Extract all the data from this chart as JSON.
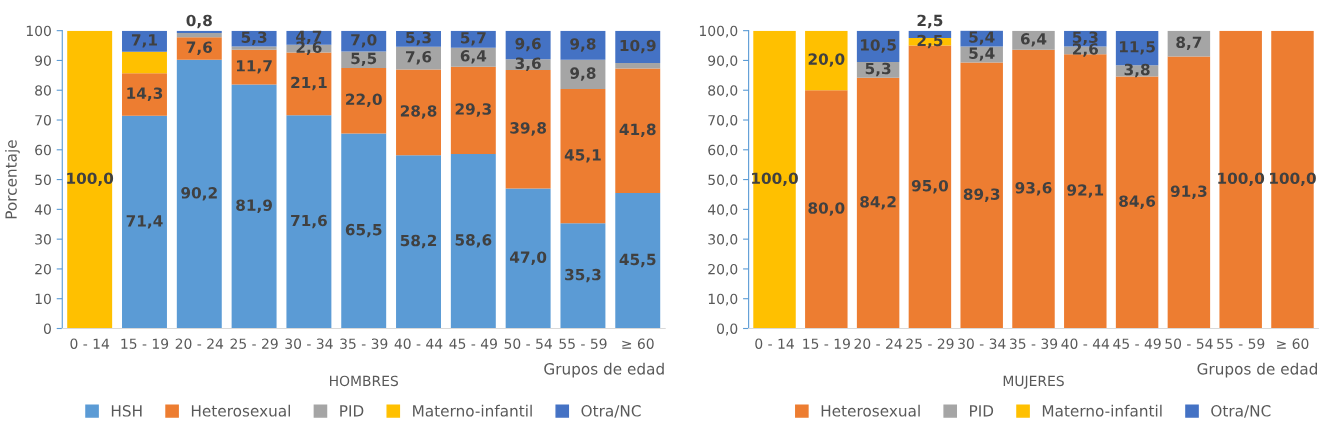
{
  "chart_data": [
    {
      "type": "bar",
      "stacked": true,
      "title": "HOMBRES",
      "xlabel": "Grupos de edad",
      "ylabel": "Porcentaje",
      "legend": "bottom",
      "grid": false,
      "categories": [
        "0 - 14",
        "15 - 19",
        "20 - 24",
        "25 - 29",
        "30 - 34",
        "35 - 39",
        "40 - 44",
        "45 - 49",
        "50 - 54",
        "55 - 59",
        "≥ 60"
      ],
      "ylim": [
        0,
        100
      ],
      "yticks": [
        0,
        10,
        20,
        30,
        40,
        50,
        60,
        70,
        80,
        90,
        100
      ],
      "series": [
        {
          "name": "HSH",
          "color": "#5b9bd5",
          "values": [
            null,
            71.4,
            90.2,
            81.9,
            71.6,
            65.5,
            58.2,
            58.6,
            47.0,
            35.3,
            45.5
          ],
          "value_labels": [
            null,
            "71,4",
            "90,2",
            "81,9",
            "71,6",
            "65,5",
            "58,2",
            "58,6",
            "47,0",
            "35,3",
            "45,5"
          ]
        },
        {
          "name": "Heterosexual",
          "color": "#ed7d31",
          "values": [
            null,
            14.3,
            7.6,
            11.7,
            21.1,
            22.0,
            28.8,
            29.3,
            39.8,
            45.1,
            41.8
          ],
          "value_labels": [
            null,
            "14,3",
            "7,6",
            "11,7",
            "21,1",
            "22,0",
            "28,8",
            "29,3",
            "39,8",
            "45,1",
            "41,8"
          ]
        },
        {
          "name": "PID",
          "color": "#a5a5a5",
          "values": [
            null,
            null,
            1.4,
            1.1,
            2.6,
            5.5,
            7.6,
            6.4,
            3.6,
            9.8,
            1.8
          ],
          "value_labels": [
            null,
            null,
            null,
            null,
            "2,6",
            "5,5",
            "7,6",
            "6,4",
            "3,6",
            "9,8",
            null
          ]
        },
        {
          "name": "Materno-infantil",
          "color": "#ffc000",
          "values": [
            100.0,
            7.2,
            null,
            null,
            null,
            null,
            null,
            null,
            null,
            null,
            null
          ],
          "value_labels": [
            "100,0",
            null,
            null,
            null,
            null,
            null,
            null,
            null,
            null,
            null,
            null
          ]
        },
        {
          "name": "Otra/NC",
          "color": "#4472c4",
          "values": [
            null,
            7.1,
            0.8,
            5.3,
            4.7,
            7.0,
            5.3,
            5.7,
            9.6,
            9.8,
            10.9
          ],
          "value_labels": [
            null,
            "7,1",
            "0,8",
            "5,3",
            "4,7",
            "7,0",
            "5,3",
            "5,7",
            "9,6",
            "9,8",
            "10,9"
          ]
        }
      ]
    },
    {
      "type": "bar",
      "stacked": true,
      "title": "MUJERES",
      "xlabel": "Grupos de edad",
      "legend": "bottom",
      "grid": false,
      "categories": [
        "0 - 14",
        "15 - 19",
        "20 - 24",
        "25 - 29",
        "30 - 34",
        "35 - 39",
        "40 - 44",
        "45 - 49",
        "50 - 54",
        "55 - 59",
        "≥ 60"
      ],
      "ylim": [
        0,
        100
      ],
      "yticks": [
        {
          "value": 0,
          "label": "0,0"
        },
        {
          "value": 10,
          "label": "10,0"
        },
        {
          "value": 20,
          "label": "20,0"
        },
        {
          "value": 30,
          "label": "30,0"
        },
        {
          "value": 40,
          "label": "40,0"
        },
        {
          "value": 50,
          "label": "50,0"
        },
        {
          "value": 60,
          "label": "60,0"
        },
        {
          "value": 70,
          "label": "70,0"
        },
        {
          "value": 80,
          "label": "80,0"
        },
        {
          "value": 90,
          "label": "90,0"
        },
        {
          "value": 100,
          "label": "100,0"
        }
      ],
      "series": [
        {
          "name": "Heterosexual",
          "color": "#ed7d31",
          "values": [
            null,
            80.0,
            84.2,
            95.0,
            89.3,
            93.6,
            92.1,
            84.6,
            91.3,
            100.0,
            100.0
          ],
          "value_labels": [
            null,
            "80,0",
            "84,2",
            "95,0",
            "89,3",
            "93,6",
            "92,1",
            "84,6",
            "91,3",
            "100,0",
            "100,0"
          ]
        },
        {
          "name": "PID",
          "color": "#a5a5a5",
          "values": [
            null,
            null,
            5.3,
            null,
            5.4,
            6.4,
            2.6,
            3.8,
            8.7,
            null,
            null
          ],
          "value_labels": [
            null,
            null,
            "5,3",
            null,
            "5,4",
            "6,4",
            "2,6",
            "3,8",
            "8,7",
            null,
            null
          ]
        },
        {
          "name": "Materno-infantil",
          "color": "#ffc000",
          "values": [
            100.0,
            20.0,
            null,
            2.5,
            null,
            null,
            null,
            null,
            null,
            null,
            null
          ],
          "value_labels": [
            "100,0",
            "20,0",
            null,
            "2,5",
            null,
            null,
            null,
            null,
            null,
            null,
            null
          ]
        },
        {
          "name": "Otra/NC",
          "color": "#4472c4",
          "values": [
            null,
            null,
            10.5,
            2.5,
            5.4,
            null,
            5.3,
            11.5,
            null,
            null,
            null
          ],
          "value_labels": [
            null,
            null,
            "10,5",
            "2,5",
            "5,4",
            null,
            "5,3",
            "11,5",
            null,
            null,
            null
          ]
        }
      ]
    }
  ]
}
